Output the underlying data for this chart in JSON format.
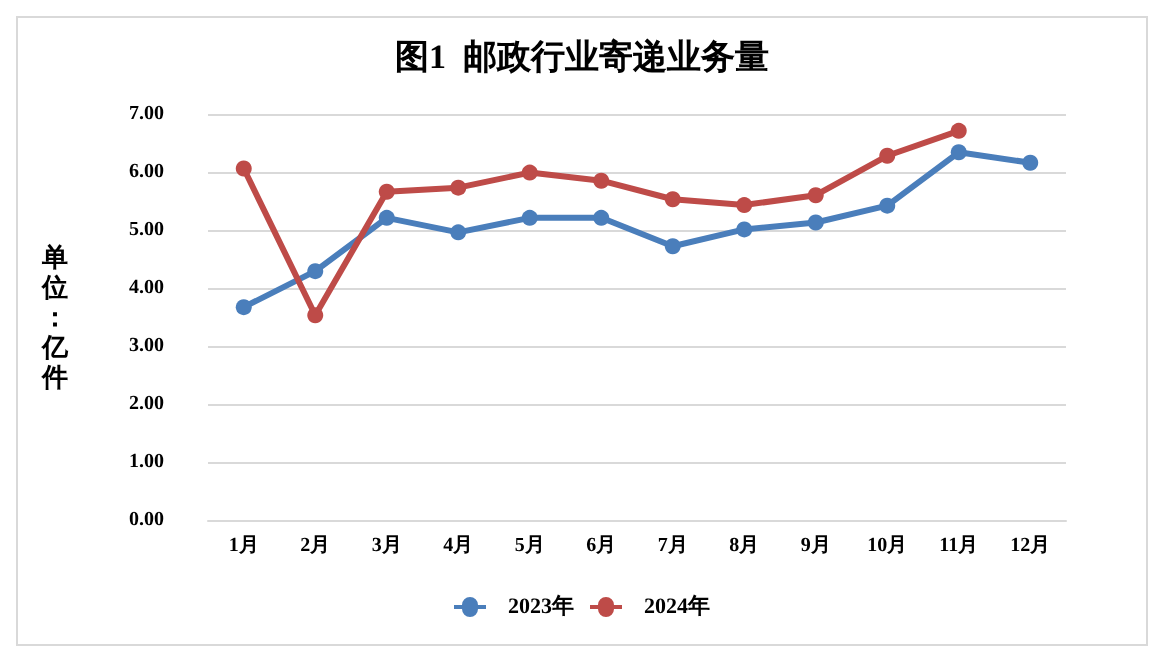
{
  "chart_data": {
    "type": "line",
    "title": "图1  邮政行业寄递业务量",
    "ylabel": "单位：亿件",
    "categories": [
      "1月",
      "2月",
      "3月",
      "4月",
      "5月",
      "6月",
      "7月",
      "8月",
      "9月",
      "10月",
      "11月",
      "12月"
    ],
    "series": [
      {
        "name": "2023年",
        "color": "#4a7ebb",
        "values": [
          3.67,
          4.29,
          5.21,
          4.96,
          5.21,
          5.21,
          4.72,
          5.01,
          5.13,
          5.42,
          6.34,
          6.16
        ]
      },
      {
        "name": "2024年",
        "color": "#be4b48",
        "values": [
          6.06,
          3.53,
          5.66,
          5.73,
          5.99,
          5.85,
          5.53,
          5.43,
          5.6,
          6.28,
          6.71,
          null
        ]
      }
    ],
    "ylim": [
      0,
      7
    ],
    "yticks": [
      {
        "value": 0,
        "label": "0.00"
      },
      {
        "value": 1,
        "label": "1.00"
      },
      {
        "value": 2,
        "label": "2.00"
      },
      {
        "value": 3,
        "label": "3.00"
      },
      {
        "value": 4,
        "label": "4.00"
      },
      {
        "value": 5,
        "label": "5.00"
      },
      {
        "value": 6,
        "label": "6.00"
      },
      {
        "value": 7,
        "label": "7.00"
      }
    ],
    "grid": "y",
    "legend": "bottom",
    "marker": "circle",
    "line_style": "solid"
  }
}
